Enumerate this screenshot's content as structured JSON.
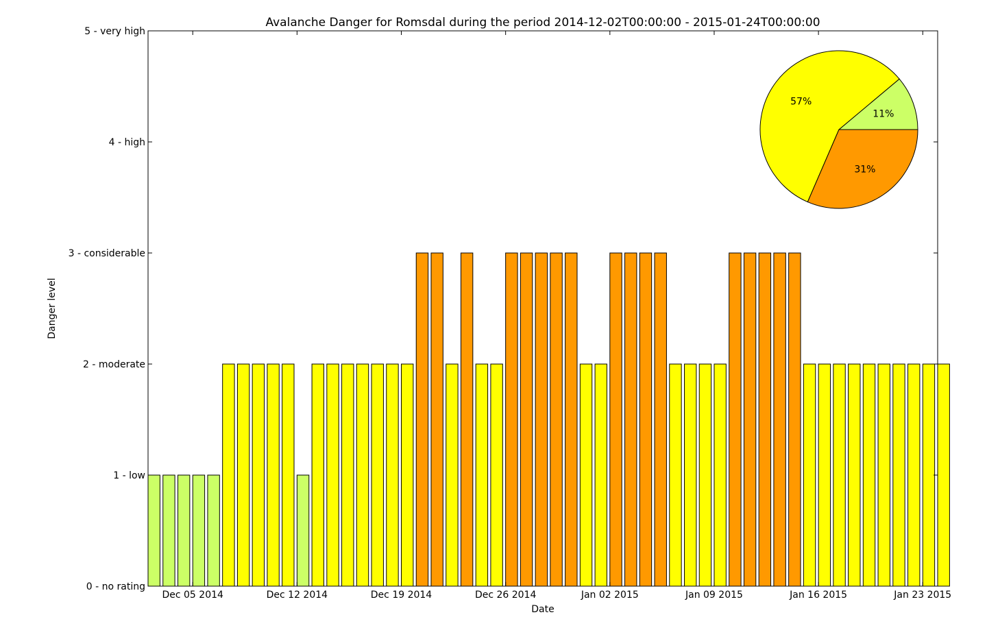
{
  "chart_data": {
    "type": "bar",
    "title": "Avalanche Danger for Romsdal during the period 2014-12-02T00:00:00 - 2015-01-24T00:00:00",
    "xlabel": "Date",
    "ylabel": "Danger level",
    "ylim": [
      0,
      5
    ],
    "xlim": [
      "2014-12-02",
      "2015-01-24"
    ],
    "yticks": [
      {
        "value": 0,
        "label": "0 - no rating"
      },
      {
        "value": 1,
        "label": "1 - low"
      },
      {
        "value": 2,
        "label": "2 - moderate"
      },
      {
        "value": 3,
        "label": "3 - considerable"
      },
      {
        "value": 4,
        "label": "4 - high"
      },
      {
        "value": 5,
        "label": "5 - very high"
      }
    ],
    "xticks": [
      {
        "date": "2014-12-05",
        "label": "Dec 05 2014"
      },
      {
        "date": "2014-12-12",
        "label": "Dec 12 2014"
      },
      {
        "date": "2014-12-19",
        "label": "Dec 19 2014"
      },
      {
        "date": "2014-12-26",
        "label": "Dec 26 2014"
      },
      {
        "date": "2015-01-02",
        "label": "Jan 02 2015"
      },
      {
        "date": "2015-01-09",
        "label": "Jan 09 2015"
      },
      {
        "date": "2015-01-16",
        "label": "Jan 16 2015"
      },
      {
        "date": "2015-01-23",
        "label": "Jan 23 2015"
      }
    ],
    "colors": {
      "0": "#FFFFFF",
      "1": "#CCFF66",
      "2": "#FFFF00",
      "3": "#FF9900",
      "4": "#FF0000",
      "5": "#000000"
    },
    "start_date": "2014-12-02",
    "values": [
      1,
      1,
      1,
      1,
      1,
      2,
      2,
      2,
      2,
      2,
      1,
      2,
      2,
      2,
      2,
      2,
      2,
      2,
      3,
      3,
      2,
      3,
      2,
      2,
      3,
      3,
      3,
      3,
      3,
      2,
      2,
      3,
      3,
      3,
      3,
      2,
      2,
      2,
      2,
      3,
      3,
      3,
      3,
      3,
      2,
      2,
      2,
      2,
      2,
      2,
      2,
      2,
      2,
      2
    ],
    "pie": {
      "slices": [
        {
          "level": 0,
          "label": "0%",
          "fraction": 0.0,
          "color": "#FFFFFF"
        },
        {
          "level": 1,
          "label": "11%",
          "fraction": 0.111,
          "color": "#CCFF66"
        },
        {
          "level": 2,
          "label": "57%",
          "fraction": 0.574,
          "color": "#FFFF00"
        },
        {
          "level": 3,
          "label": "31%",
          "fraction": 0.315,
          "color": "#FF9900"
        }
      ]
    }
  }
}
